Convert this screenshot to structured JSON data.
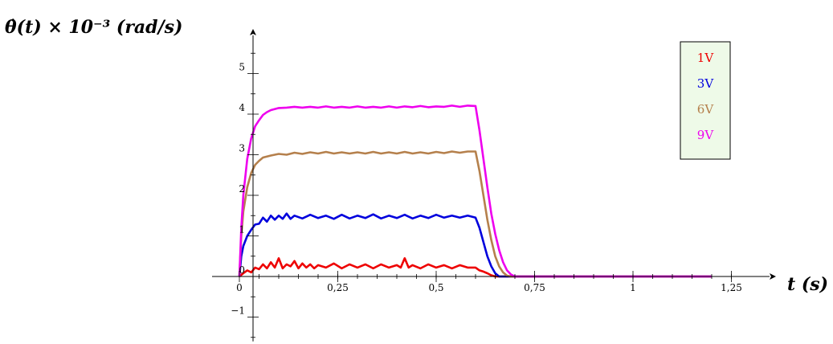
{
  "chart_data": {
    "type": "line",
    "title": "",
    "ylabel": "θ̇(t) × 10⁻³ (rad/s)",
    "xlabel": "t (s)",
    "xlim": [
      0,
      1.3
    ],
    "ylim": [
      -1.6,
      5.9
    ],
    "x_ticks": [
      {
        "value": 0,
        "label": "0"
      },
      {
        "value": 0.25,
        "label": "0,25"
      },
      {
        "value": 0.5,
        "label": "0,5"
      },
      {
        "value": 0.75,
        "label": "0,75"
      },
      {
        "value": 1,
        "label": "1"
      },
      {
        "value": 1.25,
        "label": "1,25"
      }
    ],
    "y_ticks": [
      {
        "value": -1,
        "label": "−1"
      },
      {
        "value": 0,
        "label": "0"
      },
      {
        "value": 1,
        "label": "1"
      },
      {
        "value": 2,
        "label": "2"
      },
      {
        "value": 3,
        "label": "3"
      },
      {
        "value": 4,
        "label": "4"
      },
      {
        "value": 5,
        "label": "5"
      }
    ],
    "grid": false,
    "legend_position": "top-right",
    "series": [
      {
        "name": "1V",
        "color": "#ee0000",
        "points": [
          [
            0,
            0
          ],
          [
            0.01,
            0.08
          ],
          [
            0.02,
            0.15
          ],
          [
            0.03,
            0.1
          ],
          [
            0.04,
            0.22
          ],
          [
            0.05,
            0.18
          ],
          [
            0.06,
            0.3
          ],
          [
            0.07,
            0.2
          ],
          [
            0.08,
            0.35
          ],
          [
            0.09,
            0.22
          ],
          [
            0.1,
            0.45
          ],
          [
            0.11,
            0.2
          ],
          [
            0.12,
            0.3
          ],
          [
            0.13,
            0.25
          ],
          [
            0.14,
            0.38
          ],
          [
            0.15,
            0.2
          ],
          [
            0.16,
            0.32
          ],
          [
            0.17,
            0.22
          ],
          [
            0.18,
            0.3
          ],
          [
            0.19,
            0.2
          ],
          [
            0.2,
            0.28
          ],
          [
            0.22,
            0.22
          ],
          [
            0.24,
            0.32
          ],
          [
            0.26,
            0.2
          ],
          [
            0.28,
            0.3
          ],
          [
            0.3,
            0.22
          ],
          [
            0.32,
            0.3
          ],
          [
            0.34,
            0.2
          ],
          [
            0.36,
            0.3
          ],
          [
            0.38,
            0.22
          ],
          [
            0.4,
            0.28
          ],
          [
            0.41,
            0.22
          ],
          [
            0.42,
            0.45
          ],
          [
            0.43,
            0.22
          ],
          [
            0.44,
            0.28
          ],
          [
            0.46,
            0.2
          ],
          [
            0.48,
            0.3
          ],
          [
            0.5,
            0.22
          ],
          [
            0.52,
            0.28
          ],
          [
            0.54,
            0.2
          ],
          [
            0.56,
            0.28
          ],
          [
            0.58,
            0.22
          ],
          [
            0.6,
            0.22
          ],
          [
            0.61,
            0.15
          ],
          [
            0.62,
            0.12
          ],
          [
            0.63,
            0.08
          ],
          [
            0.64,
            0.03
          ],
          [
            0.65,
            0
          ],
          [
            1.2,
            0
          ]
        ]
      },
      {
        "name": "3V",
        "color": "#0000dd",
        "points": [
          [
            0,
            0
          ],
          [
            0.005,
            0.5
          ],
          [
            0.01,
            0.75
          ],
          [
            0.02,
            1.0
          ],
          [
            0.03,
            1.15
          ],
          [
            0.04,
            1.28
          ],
          [
            0.05,
            1.3
          ],
          [
            0.06,
            1.45
          ],
          [
            0.07,
            1.35
          ],
          [
            0.08,
            1.5
          ],
          [
            0.09,
            1.4
          ],
          [
            0.1,
            1.5
          ],
          [
            0.11,
            1.42
          ],
          [
            0.12,
            1.55
          ],
          [
            0.13,
            1.42
          ],
          [
            0.14,
            1.5
          ],
          [
            0.16,
            1.43
          ],
          [
            0.18,
            1.52
          ],
          [
            0.2,
            1.44
          ],
          [
            0.22,
            1.5
          ],
          [
            0.24,
            1.42
          ],
          [
            0.26,
            1.52
          ],
          [
            0.28,
            1.43
          ],
          [
            0.3,
            1.5
          ],
          [
            0.32,
            1.44
          ],
          [
            0.34,
            1.53
          ],
          [
            0.36,
            1.43
          ],
          [
            0.38,
            1.5
          ],
          [
            0.4,
            1.44
          ],
          [
            0.42,
            1.52
          ],
          [
            0.44,
            1.43
          ],
          [
            0.46,
            1.5
          ],
          [
            0.48,
            1.44
          ],
          [
            0.5,
            1.52
          ],
          [
            0.52,
            1.45
          ],
          [
            0.54,
            1.5
          ],
          [
            0.56,
            1.45
          ],
          [
            0.58,
            1.5
          ],
          [
            0.6,
            1.45
          ],
          [
            0.61,
            1.2
          ],
          [
            0.62,
            0.85
          ],
          [
            0.63,
            0.5
          ],
          [
            0.64,
            0.25
          ],
          [
            0.65,
            0.08
          ],
          [
            0.66,
            0
          ],
          [
            1.2,
            0
          ]
        ]
      },
      {
        "name": "6V",
        "color": "#b5804c",
        "points": [
          [
            0,
            0
          ],
          [
            0.005,
            1.0
          ],
          [
            0.01,
            1.6
          ],
          [
            0.02,
            2.2
          ],
          [
            0.03,
            2.55
          ],
          [
            0.04,
            2.75
          ],
          [
            0.05,
            2.85
          ],
          [
            0.06,
            2.93
          ],
          [
            0.08,
            2.98
          ],
          [
            0.1,
            3.02
          ],
          [
            0.12,
            3.0
          ],
          [
            0.14,
            3.05
          ],
          [
            0.16,
            3.02
          ],
          [
            0.18,
            3.06
          ],
          [
            0.2,
            3.03
          ],
          [
            0.22,
            3.07
          ],
          [
            0.24,
            3.03
          ],
          [
            0.26,
            3.06
          ],
          [
            0.28,
            3.03
          ],
          [
            0.3,
            3.06
          ],
          [
            0.32,
            3.03
          ],
          [
            0.34,
            3.07
          ],
          [
            0.36,
            3.03
          ],
          [
            0.38,
            3.06
          ],
          [
            0.4,
            3.03
          ],
          [
            0.42,
            3.07
          ],
          [
            0.44,
            3.03
          ],
          [
            0.46,
            3.06
          ],
          [
            0.48,
            3.03
          ],
          [
            0.5,
            3.07
          ],
          [
            0.52,
            3.04
          ],
          [
            0.54,
            3.08
          ],
          [
            0.56,
            3.05
          ],
          [
            0.58,
            3.08
          ],
          [
            0.6,
            3.08
          ],
          [
            0.61,
            2.6
          ],
          [
            0.62,
            2.0
          ],
          [
            0.63,
            1.4
          ],
          [
            0.64,
            0.9
          ],
          [
            0.65,
            0.5
          ],
          [
            0.66,
            0.25
          ],
          [
            0.67,
            0.1
          ],
          [
            0.68,
            0.02
          ],
          [
            0.69,
            0
          ],
          [
            1.2,
            0
          ]
        ]
      },
      {
        "name": "9V",
        "color": "#ee00ee",
        "points": [
          [
            0,
            0
          ],
          [
            0.005,
            1.2
          ],
          [
            0.01,
            2.0
          ],
          [
            0.02,
            2.9
          ],
          [
            0.03,
            3.4
          ],
          [
            0.04,
            3.7
          ],
          [
            0.05,
            3.85
          ],
          [
            0.06,
            3.98
          ],
          [
            0.07,
            4.05
          ],
          [
            0.08,
            4.1
          ],
          [
            0.1,
            4.15
          ],
          [
            0.12,
            4.16
          ],
          [
            0.14,
            4.18
          ],
          [
            0.16,
            4.16
          ],
          [
            0.18,
            4.18
          ],
          [
            0.2,
            4.16
          ],
          [
            0.22,
            4.19
          ],
          [
            0.24,
            4.16
          ],
          [
            0.26,
            4.18
          ],
          [
            0.28,
            4.16
          ],
          [
            0.3,
            4.19
          ],
          [
            0.32,
            4.16
          ],
          [
            0.34,
            4.18
          ],
          [
            0.36,
            4.16
          ],
          [
            0.38,
            4.19
          ],
          [
            0.4,
            4.16
          ],
          [
            0.42,
            4.19
          ],
          [
            0.44,
            4.17
          ],
          [
            0.46,
            4.2
          ],
          [
            0.48,
            4.17
          ],
          [
            0.5,
            4.19
          ],
          [
            0.52,
            4.18
          ],
          [
            0.54,
            4.21
          ],
          [
            0.56,
            4.18
          ],
          [
            0.58,
            4.21
          ],
          [
            0.6,
            4.2
          ],
          [
            0.61,
            3.6
          ],
          [
            0.62,
            2.9
          ],
          [
            0.63,
            2.2
          ],
          [
            0.64,
            1.55
          ],
          [
            0.65,
            1.05
          ],
          [
            0.66,
            0.65
          ],
          [
            0.67,
            0.35
          ],
          [
            0.68,
            0.15
          ],
          [
            0.69,
            0.05
          ],
          [
            0.7,
            0
          ],
          [
            1.2,
            0
          ]
        ]
      }
    ]
  }
}
